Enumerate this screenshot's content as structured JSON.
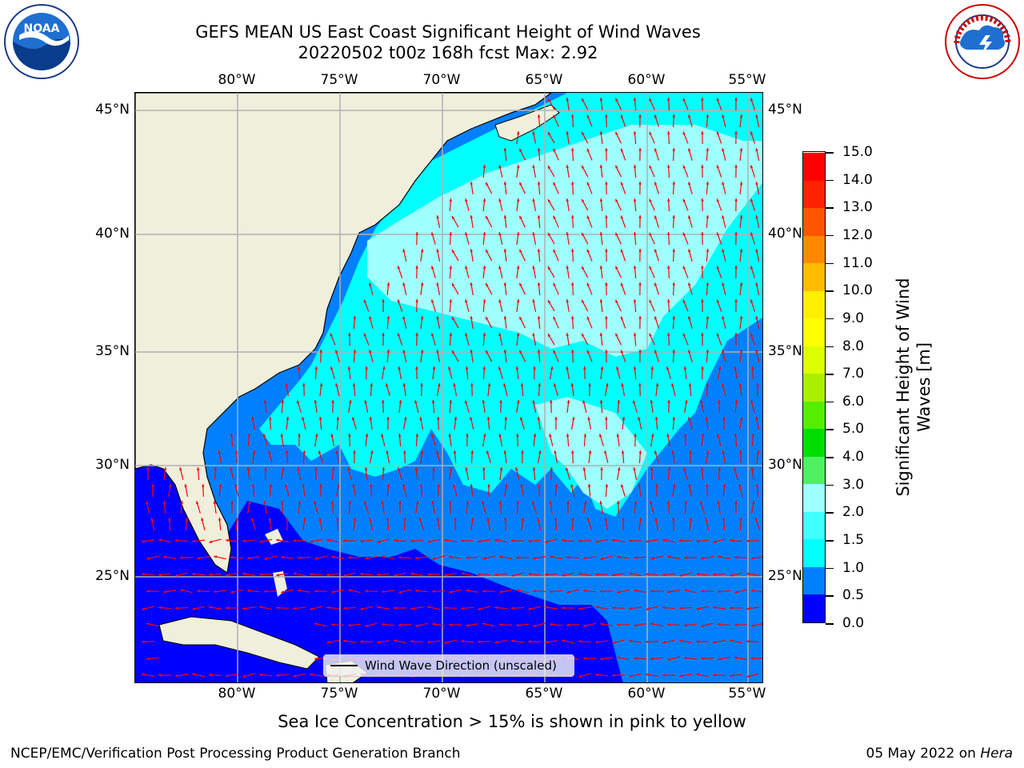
{
  "title_line1": "GEFS MEAN US East Coast Significant Height of Wind Waves",
  "title_line2": "20220502 t00z 168h fcst   Max: 2.92",
  "logos": {
    "left": "noaa-logo",
    "left_text": "NOAA",
    "right": "nws-logo",
    "right_text": "NATIONAL WEATHER SERVICE"
  },
  "axes": {
    "lon_labels": [
      "80°W",
      "75°W",
      "70°W",
      "65°W",
      "60°W",
      "55°W"
    ],
    "lat_labels": [
      "45°N",
      "40°N",
      "35°N",
      "30°N",
      "25°N"
    ]
  },
  "legend_label": "Wind Wave Direction (unscaled)",
  "colorbar": {
    "title_line1": "Significant Height of Wind",
    "title_line2": "Waves [m]",
    "tick_labels": [
      "0.0",
      "0.5",
      "1.0",
      "1.5",
      "2.0",
      "3.0",
      "4.0",
      "5.0",
      "6.0",
      "7.0",
      "8.0",
      "9.0",
      "10.0",
      "11.0",
      "12.0",
      "13.0",
      "14.0",
      "15.0"
    ],
    "colors": [
      "#0000ff",
      "#0080ff",
      "#00ffff",
      "#40ffff",
      "#a0ffff",
      "#50f060",
      "#00dd00",
      "#55ee00",
      "#aaee00",
      "#ddff00",
      "#ffff00",
      "#ffee00",
      "#ffbb00",
      "#ff8800",
      "#ff5500",
      "#ff2200",
      "#ff0000"
    ]
  },
  "map_colors": {
    "land": "#efefdc",
    "deep_blue": "#0000ff",
    "mid_blue": "#0080ff",
    "cyan": "#00ffff",
    "light_cyan": "#a0ffff",
    "arrow": "#ff0000",
    "grid": "#b0b0b0"
  },
  "ice_note": "Sea Ice Concentration > 15% is shown in pink to yellow",
  "footer_left": "NCEP/EMC/Verification Post Processing Product Generation Branch",
  "footer_right_date": "05 May 2022 on",
  "footer_right_host": "Hera"
}
